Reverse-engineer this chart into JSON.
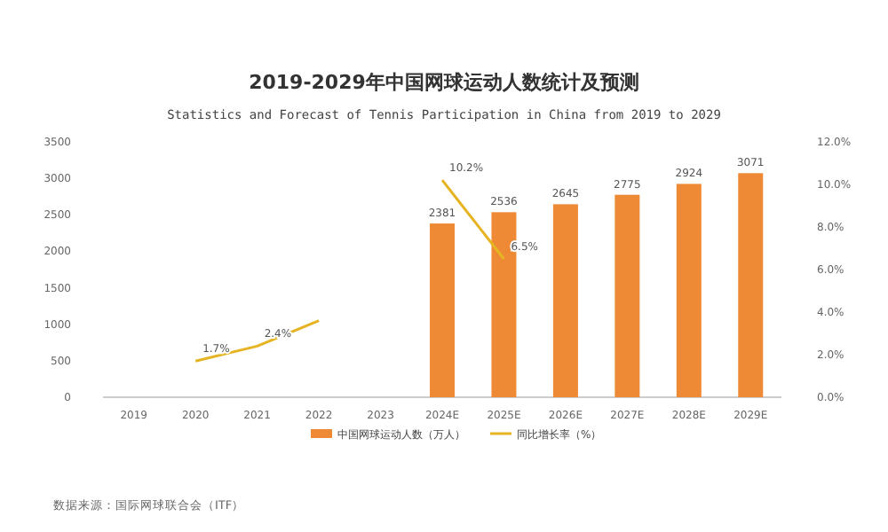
{
  "chart_data": {
    "type": "bar",
    "title": "2019-2029年中国网球运动人数统计及预测",
    "subtitle": "Statistics and Forecast of Tennis Participation in China from 2019 to 2029",
    "categories": [
      "2019",
      "2020",
      "2021",
      "2022",
      "2023",
      "2024E",
      "2025E",
      "2026E",
      "2027E",
      "2028E",
      "2029E"
    ],
    "series": [
      {
        "name": "中国网球运动人数（万人）",
        "color": "#ee8a35",
        "values": [
          null,
          null,
          null,
          null,
          null,
          2381,
          2536,
          2645,
          2775,
          2924,
          3071
        ],
        "value_labels": [
          null,
          null,
          null,
          null,
          null,
          "2381",
          "2536",
          "2645",
          "2775",
          "2924",
          "3071"
        ]
      },
      {
        "name": "同比增长率（%）",
        "type": "line",
        "axis": "y2",
        "color": "#e6b422",
        "values": [
          null,
          1.7,
          2.4,
          3.6,
          null,
          10.2,
          6.5,
          null,
          null,
          null,
          null
        ],
        "value_labels": [
          null,
          "1.7%",
          "2.4%",
          null,
          null,
          "10.2%",
          "6.5%",
          null,
          null,
          null,
          null
        ]
      }
    ],
    "ylim": [
      0,
      3500
    ],
    "yticks": [
      0,
      500,
      1000,
      1500,
      2000,
      2500,
      3000,
      3500
    ],
    "y2lim": [
      0,
      12
    ],
    "y2ticks": [
      {
        "value": 0,
        "label": "0.0%"
      },
      {
        "value": 2,
        "label": "2.0%"
      },
      {
        "value": 4,
        "label": "4.0%"
      },
      {
        "value": 6,
        "label": "6.0%"
      },
      {
        "value": 8,
        "label": "8.0%"
      },
      {
        "value": 10,
        "label": "10.0%"
      },
      {
        "value": 12,
        "label": "12.0%"
      }
    ],
    "grid": false,
    "legend": "bottom",
    "marker": "none",
    "annotations": [
      "数据来源：国际网球联合会（ITF）"
    ]
  }
}
